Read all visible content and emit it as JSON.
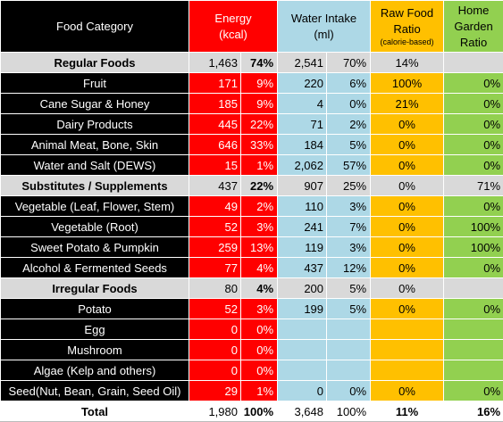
{
  "header": {
    "food_category": "Food Category",
    "energy": [
      "Energy",
      "(kcal)"
    ],
    "water": [
      "Water Intake",
      "(ml)"
    ],
    "raw": [
      "Raw Food",
      "Ratio"
    ],
    "raw_sub": "(calorie-based)",
    "garden": [
      "Home",
      "Garden",
      "Ratio"
    ]
  },
  "rows": [
    {
      "kind": "group",
      "name": "Regular Foods",
      "energy": "1,463",
      "energy_pct": "74%",
      "water": "2,541",
      "water_pct": "70%",
      "raw": "14%",
      "garden": ""
    },
    {
      "kind": "item",
      "name": "Fruit",
      "energy": "171",
      "energy_pct": "9%",
      "water": "220",
      "water_pct": "6%",
      "raw": "100%",
      "garden": "0%"
    },
    {
      "kind": "item",
      "name": "Cane Sugar & Honey",
      "energy": "185",
      "energy_pct": "9%",
      "water": "4",
      "water_pct": "0%",
      "raw": "21%",
      "garden": "0%"
    },
    {
      "kind": "item",
      "name": "Dairy Products",
      "energy": "445",
      "energy_pct": "22%",
      "water": "71",
      "water_pct": "2%",
      "raw": "0%",
      "garden": "0%"
    },
    {
      "kind": "item",
      "name": "Animal Meat, Bone, Skin",
      "energy": "646",
      "energy_pct": "33%",
      "water": "184",
      "water_pct": "5%",
      "raw": "0%",
      "garden": "0%"
    },
    {
      "kind": "item",
      "name": "Water and Salt (DEWS)",
      "energy": "15",
      "energy_pct": "1%",
      "water": "2,062",
      "water_pct": "57%",
      "raw": "0%",
      "garden": "0%"
    },
    {
      "kind": "group",
      "name": "Substitutes / Supplements",
      "energy": "437",
      "energy_pct": "22%",
      "water": "907",
      "water_pct": "25%",
      "raw": "0%",
      "garden": "71%"
    },
    {
      "kind": "item",
      "name": "Vegetable (Leaf, Flower, Stem)",
      "energy": "49",
      "energy_pct": "2%",
      "water": "110",
      "water_pct": "3%",
      "raw": "0%",
      "garden": "0%"
    },
    {
      "kind": "item",
      "name": "Vegetable (Root)",
      "energy": "52",
      "energy_pct": "3%",
      "water": "241",
      "water_pct": "7%",
      "raw": "0%",
      "garden": "100%"
    },
    {
      "kind": "item",
      "name": "Sweet Potato & Pumpkin",
      "energy": "259",
      "energy_pct": "13%",
      "water": "119",
      "water_pct": "3%",
      "raw": "0%",
      "garden": "100%"
    },
    {
      "kind": "item",
      "name": "Alcohol & Fermented Seeds",
      "energy": "77",
      "energy_pct": "4%",
      "water": "437",
      "water_pct": "12%",
      "raw": "0%",
      "garden": "0%"
    },
    {
      "kind": "group",
      "name": "Irregular Foods",
      "energy": "80",
      "energy_pct": "4%",
      "water": "200",
      "water_pct": "5%",
      "raw": "0%",
      "garden": ""
    },
    {
      "kind": "item",
      "name": "Potato",
      "energy": "52",
      "energy_pct": "3%",
      "water": "199",
      "water_pct": "5%",
      "raw": "0%",
      "garden": "0%"
    },
    {
      "kind": "item",
      "name": "Egg",
      "energy": "0",
      "energy_pct": "0%",
      "water": "",
      "water_pct": "",
      "raw": "",
      "garden": ""
    },
    {
      "kind": "item",
      "name": "Mushroom",
      "energy": "0",
      "energy_pct": "0%",
      "water": "",
      "water_pct": "",
      "raw": "",
      "garden": ""
    },
    {
      "kind": "item",
      "name": "Algae (Kelp and others)",
      "energy": "0",
      "energy_pct": "0%",
      "water": "",
      "water_pct": "",
      "raw": "",
      "garden": ""
    },
    {
      "kind": "item",
      "name": "Seed(Nut, Bean, Grain, Seed Oil)",
      "energy": "29",
      "energy_pct": "1%",
      "water": "0",
      "water_pct": "0%",
      "raw": "0%",
      "garden": "0%"
    },
    {
      "kind": "total",
      "name": "Total",
      "energy": "1,980",
      "energy_pct": "100%",
      "water": "3,648",
      "water_pct": "100%",
      "raw": "11%",
      "garden": "16%"
    }
  ],
  "colors": {
    "name_bg": "#000000",
    "energy_bg": "#ff0000",
    "water_bg": "#add8e6",
    "raw_bg": "#ffc000",
    "garden_bg": "#92d050",
    "group_bg": "#d9d9d9"
  }
}
